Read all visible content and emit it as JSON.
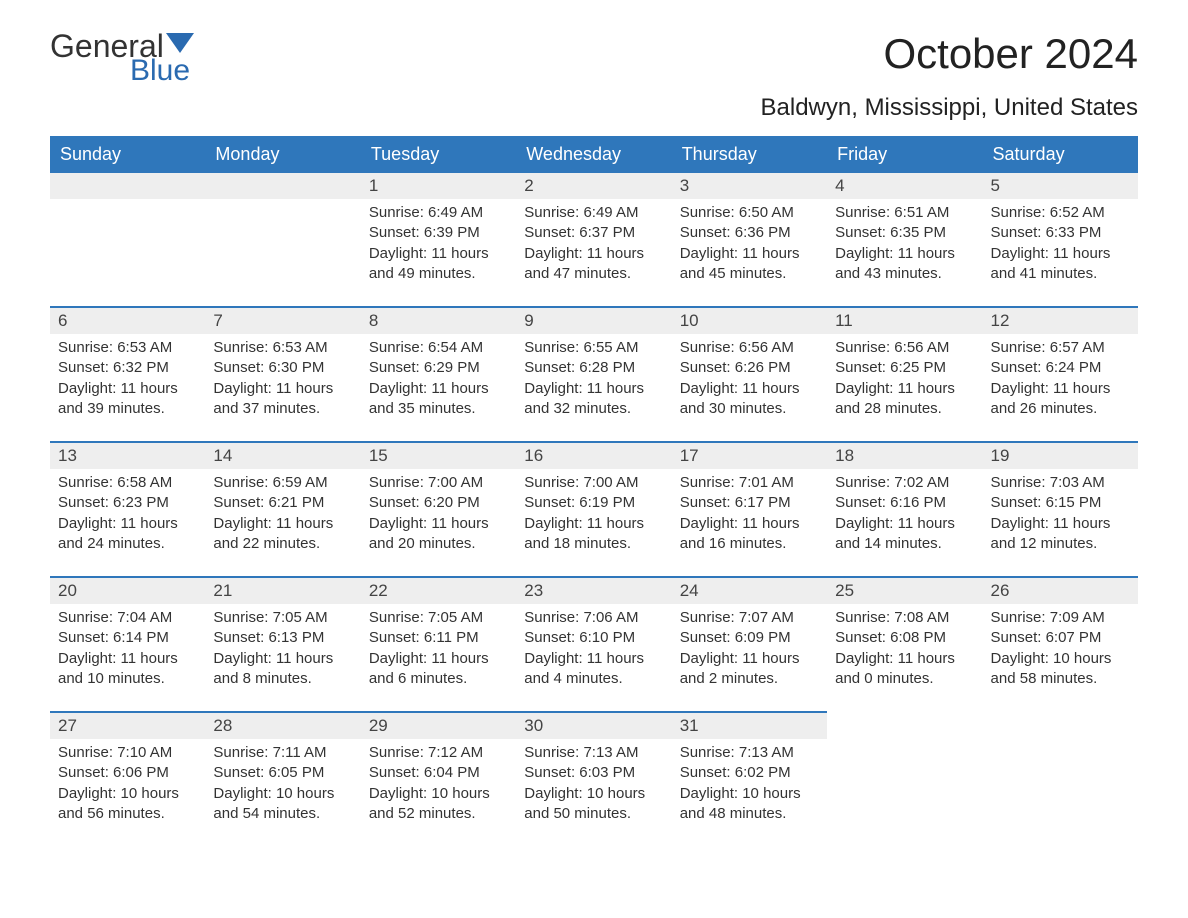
{
  "logo": {
    "text_general": "General",
    "text_blue": "Blue",
    "triangle_color": "#2a6ab0"
  },
  "title": "October 2024",
  "subtitle": "Baldwyn, Mississippi, United States",
  "colors": {
    "header_bg": "#2f77bb",
    "header_text": "#ffffff",
    "daynum_bg": "#eeeeee",
    "border_top": "#2f77bb",
    "body_text": "#333333"
  },
  "day_headers": [
    "Sunday",
    "Monday",
    "Tuesday",
    "Wednesday",
    "Thursday",
    "Friday",
    "Saturday"
  ],
  "weeks": [
    [
      {
        "blank": true
      },
      {
        "blank": true
      },
      {
        "num": "1",
        "sunrise": "Sunrise: 6:49 AM",
        "sunset": "Sunset: 6:39 PM",
        "daylight1": "Daylight: 11 hours",
        "daylight2": "and 49 minutes."
      },
      {
        "num": "2",
        "sunrise": "Sunrise: 6:49 AM",
        "sunset": "Sunset: 6:37 PM",
        "daylight1": "Daylight: 11 hours",
        "daylight2": "and 47 minutes."
      },
      {
        "num": "3",
        "sunrise": "Sunrise: 6:50 AM",
        "sunset": "Sunset: 6:36 PM",
        "daylight1": "Daylight: 11 hours",
        "daylight2": "and 45 minutes."
      },
      {
        "num": "4",
        "sunrise": "Sunrise: 6:51 AM",
        "sunset": "Sunset: 6:35 PM",
        "daylight1": "Daylight: 11 hours",
        "daylight2": "and 43 minutes."
      },
      {
        "num": "5",
        "sunrise": "Sunrise: 6:52 AM",
        "sunset": "Sunset: 6:33 PM",
        "daylight1": "Daylight: 11 hours",
        "daylight2": "and 41 minutes."
      }
    ],
    [
      {
        "num": "6",
        "sunrise": "Sunrise: 6:53 AM",
        "sunset": "Sunset: 6:32 PM",
        "daylight1": "Daylight: 11 hours",
        "daylight2": "and 39 minutes."
      },
      {
        "num": "7",
        "sunrise": "Sunrise: 6:53 AM",
        "sunset": "Sunset: 6:30 PM",
        "daylight1": "Daylight: 11 hours",
        "daylight2": "and 37 minutes."
      },
      {
        "num": "8",
        "sunrise": "Sunrise: 6:54 AM",
        "sunset": "Sunset: 6:29 PM",
        "daylight1": "Daylight: 11 hours",
        "daylight2": "and 35 minutes."
      },
      {
        "num": "9",
        "sunrise": "Sunrise: 6:55 AM",
        "sunset": "Sunset: 6:28 PM",
        "daylight1": "Daylight: 11 hours",
        "daylight2": "and 32 minutes."
      },
      {
        "num": "10",
        "sunrise": "Sunrise: 6:56 AM",
        "sunset": "Sunset: 6:26 PM",
        "daylight1": "Daylight: 11 hours",
        "daylight2": "and 30 minutes."
      },
      {
        "num": "11",
        "sunrise": "Sunrise: 6:56 AM",
        "sunset": "Sunset: 6:25 PM",
        "daylight1": "Daylight: 11 hours",
        "daylight2": "and 28 minutes."
      },
      {
        "num": "12",
        "sunrise": "Sunrise: 6:57 AM",
        "sunset": "Sunset: 6:24 PM",
        "daylight1": "Daylight: 11 hours",
        "daylight2": "and 26 minutes."
      }
    ],
    [
      {
        "num": "13",
        "sunrise": "Sunrise: 6:58 AM",
        "sunset": "Sunset: 6:23 PM",
        "daylight1": "Daylight: 11 hours",
        "daylight2": "and 24 minutes."
      },
      {
        "num": "14",
        "sunrise": "Sunrise: 6:59 AM",
        "sunset": "Sunset: 6:21 PM",
        "daylight1": "Daylight: 11 hours",
        "daylight2": "and 22 minutes."
      },
      {
        "num": "15",
        "sunrise": "Sunrise: 7:00 AM",
        "sunset": "Sunset: 6:20 PM",
        "daylight1": "Daylight: 11 hours",
        "daylight2": "and 20 minutes."
      },
      {
        "num": "16",
        "sunrise": "Sunrise: 7:00 AM",
        "sunset": "Sunset: 6:19 PM",
        "daylight1": "Daylight: 11 hours",
        "daylight2": "and 18 minutes."
      },
      {
        "num": "17",
        "sunrise": "Sunrise: 7:01 AM",
        "sunset": "Sunset: 6:17 PM",
        "daylight1": "Daylight: 11 hours",
        "daylight2": "and 16 minutes."
      },
      {
        "num": "18",
        "sunrise": "Sunrise: 7:02 AM",
        "sunset": "Sunset: 6:16 PM",
        "daylight1": "Daylight: 11 hours",
        "daylight2": "and 14 minutes."
      },
      {
        "num": "19",
        "sunrise": "Sunrise: 7:03 AM",
        "sunset": "Sunset: 6:15 PM",
        "daylight1": "Daylight: 11 hours",
        "daylight2": "and 12 minutes."
      }
    ],
    [
      {
        "num": "20",
        "sunrise": "Sunrise: 7:04 AM",
        "sunset": "Sunset: 6:14 PM",
        "daylight1": "Daylight: 11 hours",
        "daylight2": "and 10 minutes."
      },
      {
        "num": "21",
        "sunrise": "Sunrise: 7:05 AM",
        "sunset": "Sunset: 6:13 PM",
        "daylight1": "Daylight: 11 hours",
        "daylight2": "and 8 minutes."
      },
      {
        "num": "22",
        "sunrise": "Sunrise: 7:05 AM",
        "sunset": "Sunset: 6:11 PM",
        "daylight1": "Daylight: 11 hours",
        "daylight2": "and 6 minutes."
      },
      {
        "num": "23",
        "sunrise": "Sunrise: 7:06 AM",
        "sunset": "Sunset: 6:10 PM",
        "daylight1": "Daylight: 11 hours",
        "daylight2": "and 4 minutes."
      },
      {
        "num": "24",
        "sunrise": "Sunrise: 7:07 AM",
        "sunset": "Sunset: 6:09 PM",
        "daylight1": "Daylight: 11 hours",
        "daylight2": "and 2 minutes."
      },
      {
        "num": "25",
        "sunrise": "Sunrise: 7:08 AM",
        "sunset": "Sunset: 6:08 PM",
        "daylight1": "Daylight: 11 hours",
        "daylight2": "and 0 minutes."
      },
      {
        "num": "26",
        "sunrise": "Sunrise: 7:09 AM",
        "sunset": "Sunset: 6:07 PM",
        "daylight1": "Daylight: 10 hours",
        "daylight2": "and 58 minutes."
      }
    ],
    [
      {
        "num": "27",
        "sunrise": "Sunrise: 7:10 AM",
        "sunset": "Sunset: 6:06 PM",
        "daylight1": "Daylight: 10 hours",
        "daylight2": "and 56 minutes."
      },
      {
        "num": "28",
        "sunrise": "Sunrise: 7:11 AM",
        "sunset": "Sunset: 6:05 PM",
        "daylight1": "Daylight: 10 hours",
        "daylight2": "and 54 minutes."
      },
      {
        "num": "29",
        "sunrise": "Sunrise: 7:12 AM",
        "sunset": "Sunset: 6:04 PM",
        "daylight1": "Daylight: 10 hours",
        "daylight2": "and 52 minutes."
      },
      {
        "num": "30",
        "sunrise": "Sunrise: 7:13 AM",
        "sunset": "Sunset: 6:03 PM",
        "daylight1": "Daylight: 10 hours",
        "daylight2": "and 50 minutes."
      },
      {
        "num": "31",
        "sunrise": "Sunrise: 7:13 AM",
        "sunset": "Sunset: 6:02 PM",
        "daylight1": "Daylight: 10 hours",
        "daylight2": "and 48 minutes."
      },
      {
        "blank": true,
        "noborder": true
      },
      {
        "blank": true,
        "noborder": true
      }
    ]
  ]
}
